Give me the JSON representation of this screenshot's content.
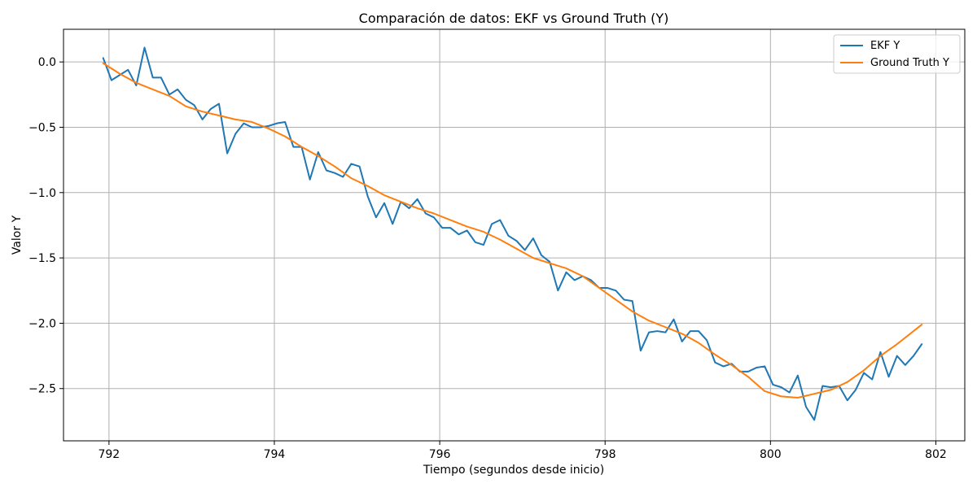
{
  "chart_data": {
    "type": "line",
    "title": "Comparación de datos: EKF vs Ground Truth (Y)",
    "xlabel": "Tiempo (segundos desde inicio)",
    "ylabel": "Valor Y",
    "xlim": [
      791.45,
      802.35
    ],
    "ylim": [
      -2.9,
      0.25
    ],
    "xticks": [
      792,
      794,
      796,
      798,
      800,
      802
    ],
    "yticks": [
      0.0,
      -0.5,
      -1.0,
      -1.5,
      -2.0,
      -2.5
    ],
    "ytick_labels": [
      "0.0",
      "−0.5",
      "−1.0",
      "−1.5",
      "−2.0",
      "−2.5"
    ],
    "grid": true,
    "legend_position": "top-right",
    "series": [
      {
        "name": "EKF Y",
        "color": "#1f77b4",
        "points": [
          [
            791.93,
            0.03
          ],
          [
            792.03,
            -0.14
          ],
          [
            792.13,
            -0.1
          ],
          [
            792.23,
            -0.06
          ],
          [
            792.33,
            -0.18
          ],
          [
            792.43,
            0.11
          ],
          [
            792.53,
            -0.12
          ],
          [
            792.63,
            -0.12
          ],
          [
            792.73,
            -0.25
          ],
          [
            792.83,
            -0.21
          ],
          [
            792.93,
            -0.29
          ],
          [
            793.03,
            -0.33
          ],
          [
            793.13,
            -0.44
          ],
          [
            793.23,
            -0.36
          ],
          [
            793.33,
            -0.32
          ],
          [
            793.43,
            -0.7
          ],
          [
            793.53,
            -0.55
          ],
          [
            793.63,
            -0.47
          ],
          [
            793.73,
            -0.5
          ],
          [
            793.83,
            -0.5
          ],
          [
            793.93,
            -0.49
          ],
          [
            794.03,
            -0.47
          ],
          [
            794.13,
            -0.46
          ],
          [
            794.23,
            -0.65
          ],
          [
            794.33,
            -0.65
          ],
          [
            794.43,
            -0.9
          ],
          [
            794.53,
            -0.69
          ],
          [
            794.63,
            -0.83
          ],
          [
            794.73,
            -0.85
          ],
          [
            794.83,
            -0.88
          ],
          [
            794.93,
            -0.78
          ],
          [
            795.03,
            -0.8
          ],
          [
            795.13,
            -1.03
          ],
          [
            795.23,
            -1.19
          ],
          [
            795.33,
            -1.08
          ],
          [
            795.43,
            -1.24
          ],
          [
            795.53,
            -1.07
          ],
          [
            795.63,
            -1.12
          ],
          [
            795.73,
            -1.05
          ],
          [
            795.83,
            -1.16
          ],
          [
            795.93,
            -1.19
          ],
          [
            796.03,
            -1.27
          ],
          [
            796.13,
            -1.27
          ],
          [
            796.23,
            -1.32
          ],
          [
            796.33,
            -1.29
          ],
          [
            796.43,
            -1.38
          ],
          [
            796.53,
            -1.4
          ],
          [
            796.63,
            -1.24
          ],
          [
            796.73,
            -1.21
          ],
          [
            796.83,
            -1.33
          ],
          [
            796.93,
            -1.37
          ],
          [
            797.03,
            -1.44
          ],
          [
            797.13,
            -1.35
          ],
          [
            797.23,
            -1.48
          ],
          [
            797.33,
            -1.53
          ],
          [
            797.43,
            -1.75
          ],
          [
            797.53,
            -1.61
          ],
          [
            797.63,
            -1.67
          ],
          [
            797.73,
            -1.64
          ],
          [
            797.83,
            -1.67
          ],
          [
            797.93,
            -1.73
          ],
          [
            798.03,
            -1.73
          ],
          [
            798.13,
            -1.75
          ],
          [
            798.23,
            -1.82
          ],
          [
            798.33,
            -1.83
          ],
          [
            798.43,
            -2.21
          ],
          [
            798.53,
            -2.07
          ],
          [
            798.63,
            -2.06
          ],
          [
            798.73,
            -2.07
          ],
          [
            798.83,
            -1.97
          ],
          [
            798.93,
            -2.14
          ],
          [
            799.03,
            -2.06
          ],
          [
            799.13,
            -2.06
          ],
          [
            799.23,
            -2.13
          ],
          [
            799.33,
            -2.3
          ],
          [
            799.43,
            -2.33
          ],
          [
            799.53,
            -2.31
          ],
          [
            799.63,
            -2.37
          ],
          [
            799.73,
            -2.37
          ],
          [
            799.83,
            -2.34
          ],
          [
            799.93,
            -2.33
          ],
          [
            800.03,
            -2.47
          ],
          [
            800.13,
            -2.49
          ],
          [
            800.23,
            -2.53
          ],
          [
            800.33,
            -2.4
          ],
          [
            800.43,
            -2.64
          ],
          [
            800.53,
            -2.74
          ],
          [
            800.63,
            -2.48
          ],
          [
            800.73,
            -2.49
          ],
          [
            800.83,
            -2.48
          ],
          [
            800.93,
            -2.59
          ],
          [
            801.03,
            -2.51
          ],
          [
            801.13,
            -2.38
          ],
          [
            801.23,
            -2.43
          ],
          [
            801.33,
            -2.22
          ],
          [
            801.43,
            -2.41
          ],
          [
            801.53,
            -2.25
          ],
          [
            801.63,
            -2.32
          ],
          [
            801.73,
            -2.25
          ],
          [
            801.83,
            -2.16
          ]
        ]
      },
      {
        "name": "Ground Truth Y",
        "color": "#ff7f0e",
        "points": [
          [
            791.93,
            -0.01
          ],
          [
            792.13,
            -0.09
          ],
          [
            792.33,
            -0.16
          ],
          [
            792.53,
            -0.21
          ],
          [
            792.73,
            -0.26
          ],
          [
            792.93,
            -0.34
          ],
          [
            793.13,
            -0.38
          ],
          [
            793.33,
            -0.41
          ],
          [
            793.53,
            -0.44
          ],
          [
            793.73,
            -0.46
          ],
          [
            793.93,
            -0.51
          ],
          [
            794.13,
            -0.57
          ],
          [
            794.33,
            -0.65
          ],
          [
            794.53,
            -0.72
          ],
          [
            794.73,
            -0.8
          ],
          [
            794.93,
            -0.89
          ],
          [
            795.13,
            -0.95
          ],
          [
            795.33,
            -1.02
          ],
          [
            795.53,
            -1.07
          ],
          [
            795.73,
            -1.12
          ],
          [
            795.93,
            -1.16
          ],
          [
            796.13,
            -1.21
          ],
          [
            796.33,
            -1.26
          ],
          [
            796.53,
            -1.3
          ],
          [
            796.73,
            -1.36
          ],
          [
            796.93,
            -1.43
          ],
          [
            797.13,
            -1.5
          ],
          [
            797.33,
            -1.54
          ],
          [
            797.53,
            -1.58
          ],
          [
            797.73,
            -1.64
          ],
          [
            797.93,
            -1.73
          ],
          [
            798.13,
            -1.82
          ],
          [
            798.33,
            -1.91
          ],
          [
            798.53,
            -1.98
          ],
          [
            798.73,
            -2.03
          ],
          [
            798.93,
            -2.08
          ],
          [
            799.13,
            -2.15
          ],
          [
            799.33,
            -2.24
          ],
          [
            799.53,
            -2.32
          ],
          [
            799.73,
            -2.41
          ],
          [
            799.93,
            -2.52
          ],
          [
            800.13,
            -2.56
          ],
          [
            800.33,
            -2.57
          ],
          [
            800.53,
            -2.54
          ],
          [
            800.73,
            -2.51
          ],
          [
            800.93,
            -2.45
          ],
          [
            801.13,
            -2.36
          ],
          [
            801.33,
            -2.25
          ],
          [
            801.53,
            -2.16
          ],
          [
            801.83,
            -2.01
          ]
        ]
      }
    ]
  }
}
